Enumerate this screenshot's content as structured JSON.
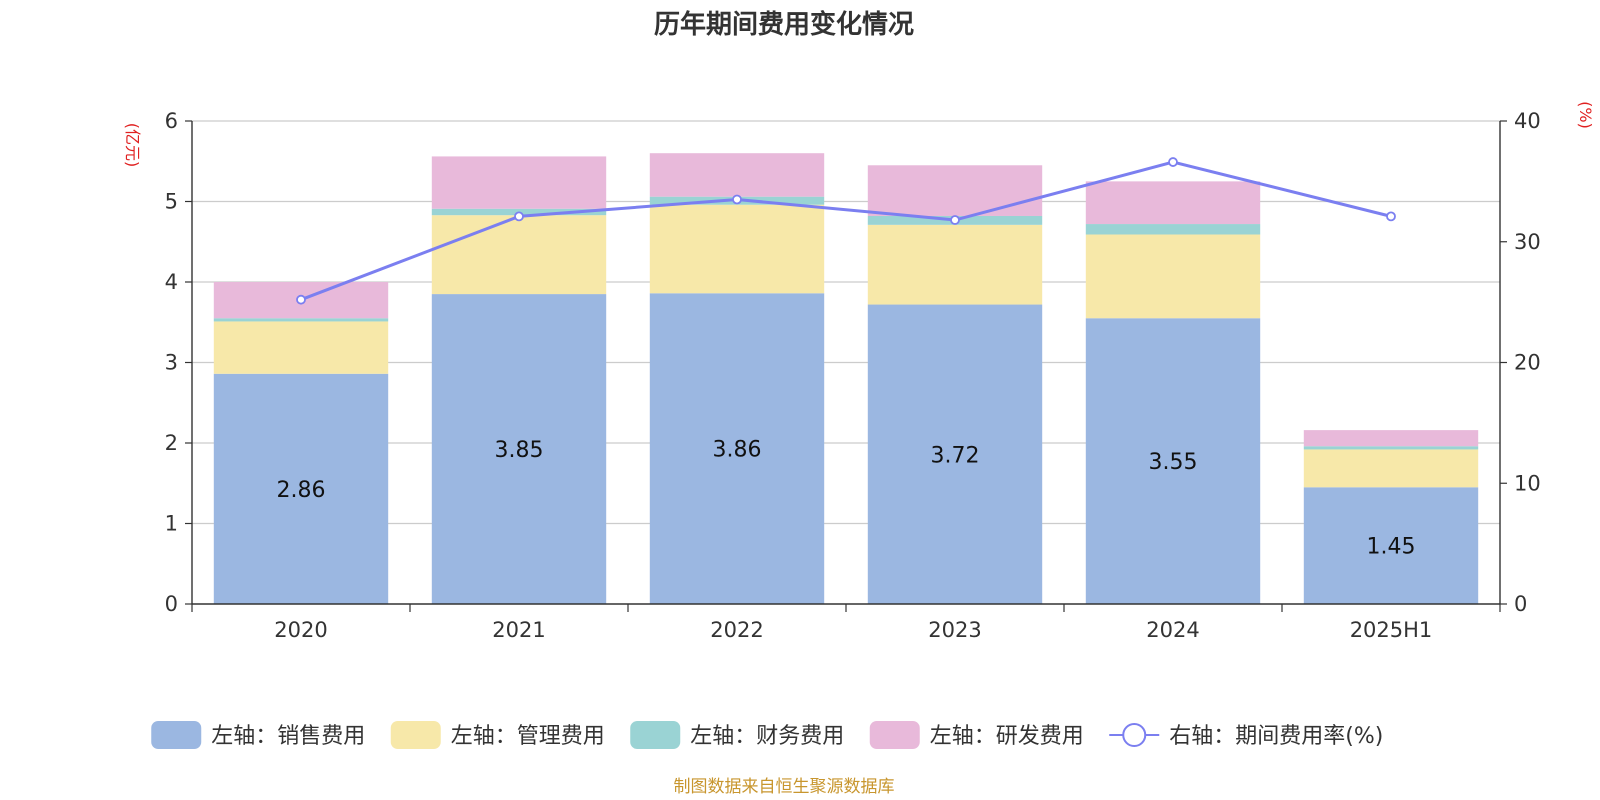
{
  "chart_data": {
    "type": "bar",
    "stacked": true,
    "title": "历年期间费用变化情况",
    "categories": [
      "2020",
      "2021",
      "2022",
      "2023",
      "2024",
      "2025H1"
    ],
    "left_axis": {
      "unit_label": "(亿元)",
      "range": [
        0,
        6
      ],
      "ticks": [
        "0",
        "1",
        "2",
        "3",
        "4",
        "5",
        "6"
      ]
    },
    "right_axis": {
      "unit_label": "(%)",
      "range": [
        0,
        40
      ],
      "ticks": [
        "0",
        "10",
        "20",
        "30",
        "40"
      ]
    },
    "series": [
      {
        "name": "左轴：销售费用",
        "axis": "left",
        "kind": "bar",
        "color": "#9bb7e1",
        "values": [
          2.86,
          3.85,
          3.86,
          3.72,
          3.55,
          1.45
        ],
        "labels": [
          "2.86",
          "3.85",
          "3.86",
          "3.72",
          "3.55",
          "1.45"
        ]
      },
      {
        "name": "左轴：管理费用",
        "axis": "left",
        "kind": "bar",
        "color": "#f7e8a9",
        "values": [
          0.65,
          0.98,
          1.1,
          0.99,
          1.04,
          0.47
        ]
      },
      {
        "name": "左轴：财务费用",
        "axis": "left",
        "kind": "bar",
        "color": "#9ad3d4",
        "values": [
          0.04,
          0.08,
          0.1,
          0.11,
          0.13,
          0.04
        ]
      },
      {
        "name": "左轴：研发费用",
        "axis": "left",
        "kind": "bar",
        "color": "#e8b9da",
        "values": [
          0.45,
          0.65,
          0.54,
          0.63,
          0.53,
          0.2
        ]
      },
      {
        "name": "右轴：期间费用率(%)",
        "axis": "right",
        "kind": "line",
        "color": "#7b7ff0",
        "values": [
          25.2,
          32.1,
          33.5,
          31.8,
          36.6,
          32.1
        ]
      }
    ],
    "grid": true,
    "legend_position": "bottom"
  },
  "source_note": "制图数据来自恒生聚源数据库"
}
